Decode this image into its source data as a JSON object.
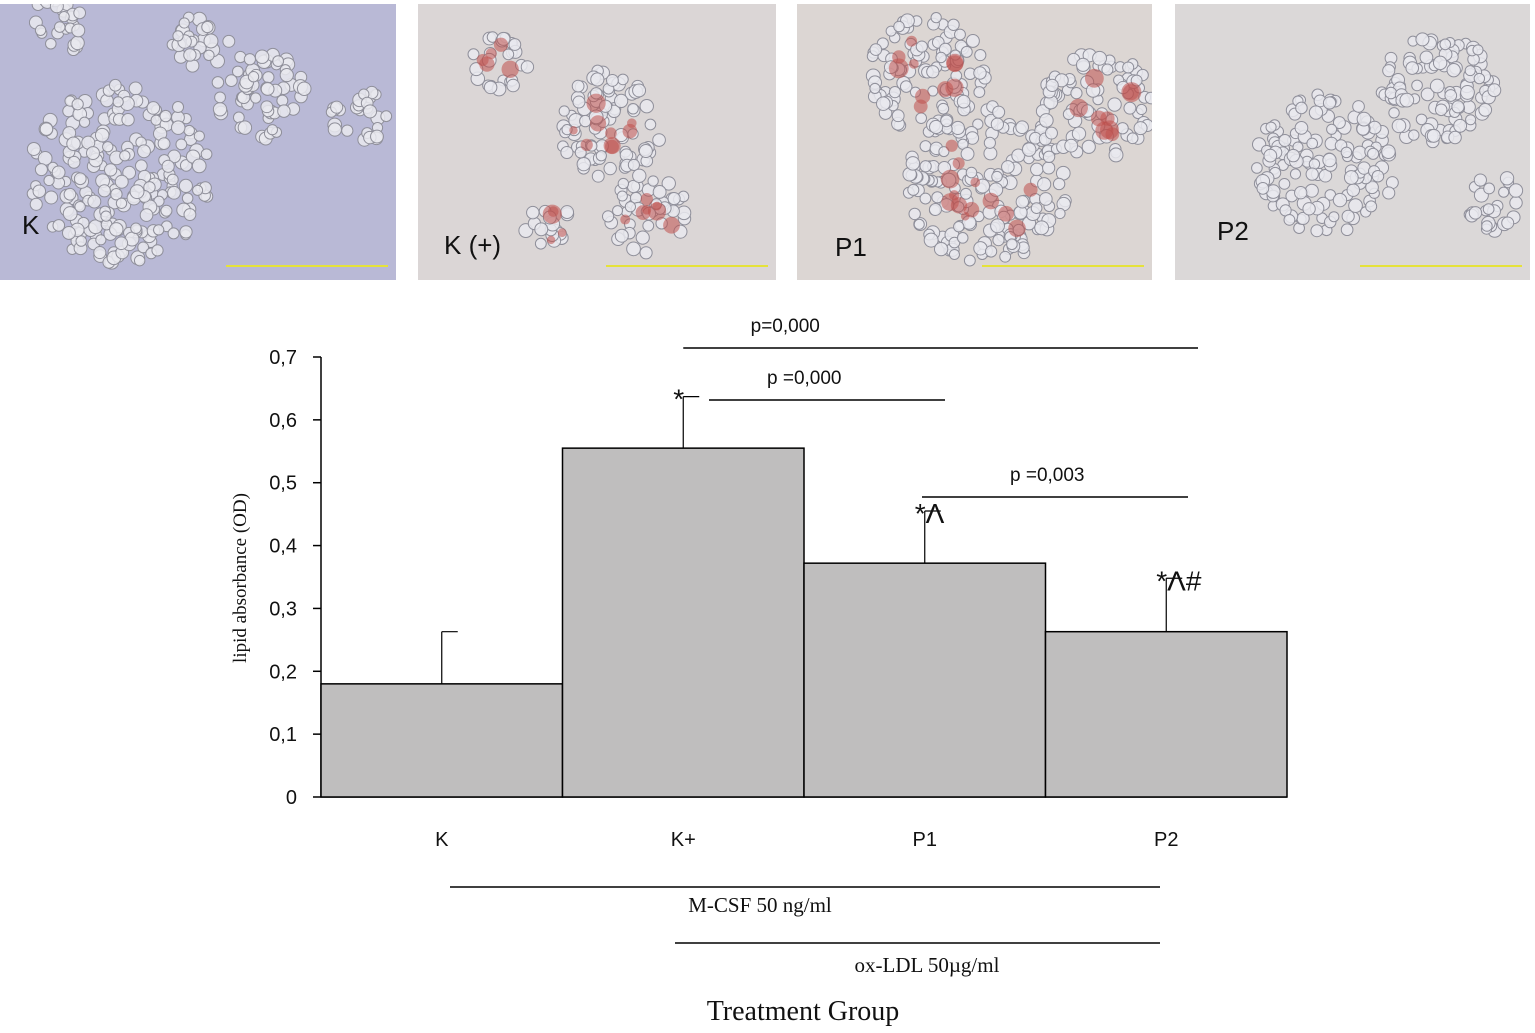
{
  "panels": [
    {
      "label": "K",
      "bg": "#b9b9d6",
      "stained": false
    },
    {
      "label": "K (+)",
      "bg": "#dbd6d6",
      "stained": true
    },
    {
      "label": "P1",
      "bg": "#dcd6d3",
      "stained": true
    },
    {
      "label": "P2",
      "bg": "#dbd8d8",
      "stained": false
    }
  ],
  "chart_data": {
    "type": "bar",
    "categories": [
      "K",
      "K+",
      "P1",
      "P2"
    ],
    "values": [
      0.18,
      0.555,
      0.372,
      0.263
    ],
    "errors": [
      0.083,
      0.082,
      0.083,
      0.085
    ],
    "markers": [
      "",
      "*",
      "*Λ",
      "*Λ#"
    ],
    "ylabel": "lipid absorbance (OD)",
    "xlabel": "Treatment Group",
    "ylim": [
      0,
      0.7
    ],
    "yticks": [
      0,
      0.1,
      0.2,
      0.3,
      0.4,
      0.5,
      0.6,
      0.7
    ],
    "ytick_labels": [
      "0",
      "0,1",
      "0,2",
      "0,3",
      "0,4",
      "0,5",
      "0,6",
      "0,7"
    ],
    "bar_color": "#bfbebe",
    "significance": [
      {
        "label": "p=0,000",
        "from": "K+",
        "to": "P2"
      },
      {
        "label": "p =0,000",
        "from": "K+",
        "to": "P1"
      },
      {
        "label": "p =0,003",
        "from": "P1",
        "to": "P2"
      }
    ],
    "treatments": [
      {
        "label": "M-CSF 50 ng/ml",
        "from": "K+",
        "to": "P2"
      },
      {
        "label": "ox-LDL 50µg/ml",
        "from": "P1",
        "to": "P2"
      }
    ]
  }
}
